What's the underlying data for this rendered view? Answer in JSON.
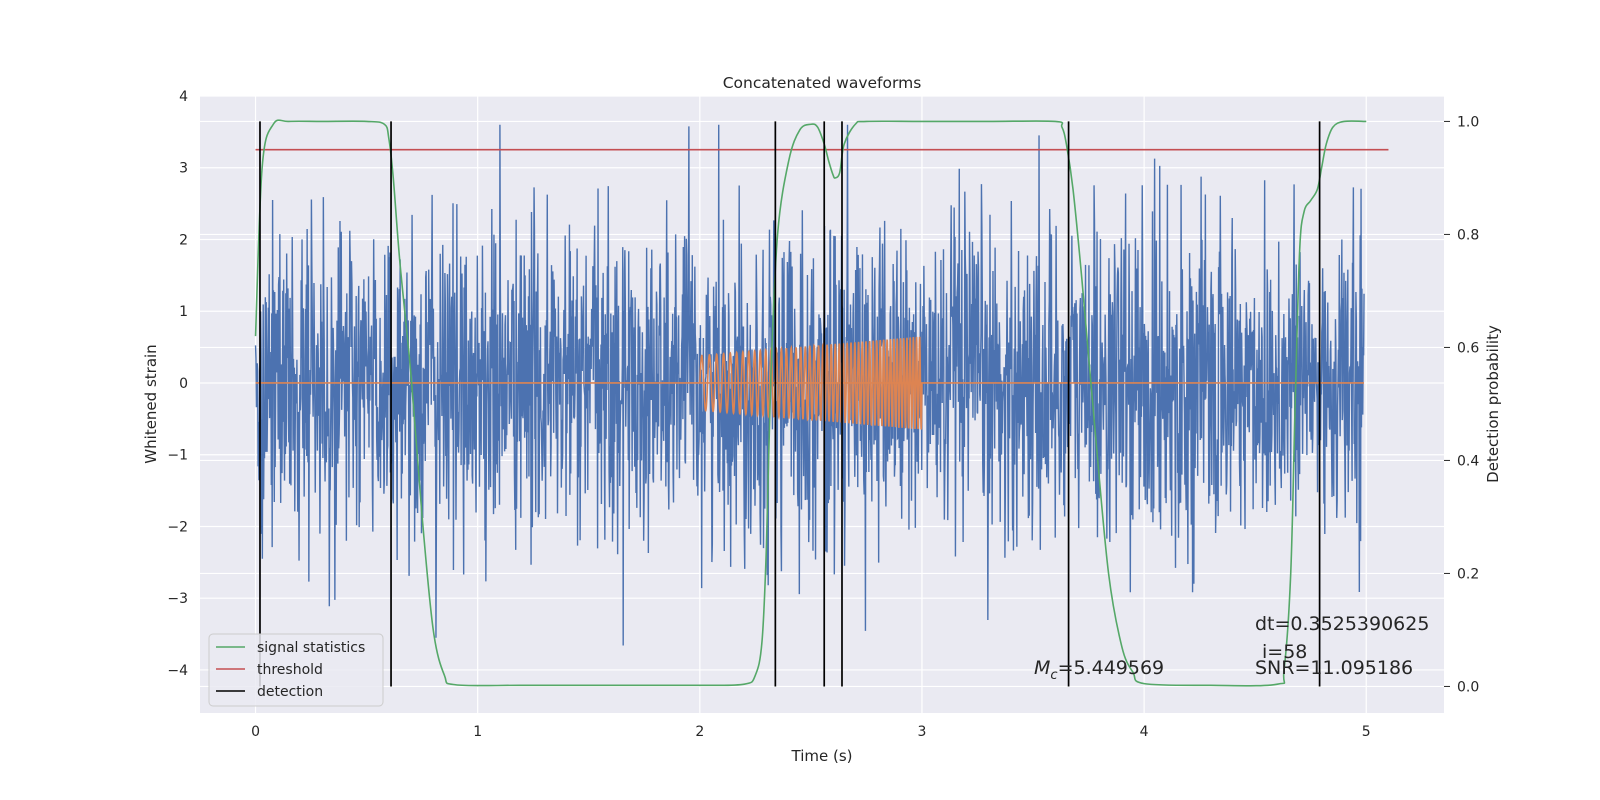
{
  "chart_data": {
    "type": "line",
    "title": "Concatenated waveforms",
    "xlabel": "Time (s)",
    "ylabel_left": "Whitened strain",
    "ylabel_right": "Detection probability",
    "xlim": [
      -0.25,
      5.35
    ],
    "ylim_left": [
      -4.6,
      4.0
    ],
    "ylim_right": [
      -0.047,
      1.045
    ],
    "x_ticks": [
      "0",
      "1",
      "2",
      "3",
      "4",
      "5"
    ],
    "y_ticks_left": [
      "4",
      "3",
      "2",
      "1",
      "0",
      "−1",
      "−2",
      "−3",
      "−4"
    ],
    "y_ticks_right": [
      "1.0",
      "0.8",
      "0.6",
      "0.4",
      "0.2",
      "0.0"
    ],
    "grid": true,
    "colors": {
      "background": "#eaeaf2",
      "grid": "#ffffff",
      "strain": "#4c72b0",
      "template": "#dd8452",
      "signal_statistics": "#55a868",
      "threshold": "#c44e52",
      "detection": "#000000"
    },
    "series": [
      {
        "name": "signal statistics",
        "axis": "right",
        "x": [
          0.0,
          0.03,
          0.08,
          0.15,
          0.3,
          0.5,
          0.58,
          0.6,
          0.62,
          0.65,
          0.7,
          0.75,
          0.8,
          0.85,
          0.9,
          1.2,
          1.6,
          2.0,
          2.2,
          2.25,
          2.28,
          2.3,
          2.32,
          2.35,
          2.4,
          2.45,
          2.5,
          2.53,
          2.56,
          2.58,
          2.6,
          2.61,
          2.63,
          2.65,
          2.7,
          2.75,
          3.0,
          3.3,
          3.6,
          3.63,
          3.65,
          3.68,
          3.72,
          3.78,
          3.84,
          3.9,
          3.95,
          4.0,
          4.3,
          4.6,
          4.63,
          4.66,
          4.68,
          4.7,
          4.72,
          4.75,
          4.78,
          4.8,
          4.82,
          4.85,
          4.9,
          5.0
        ],
        "values": [
          0.62,
          0.92,
          0.995,
          1.0,
          1.0,
          1.0,
          0.995,
          0.97,
          0.9,
          0.75,
          0.55,
          0.3,
          0.1,
          0.02,
          0.003,
          0.002,
          0.002,
          0.002,
          0.004,
          0.02,
          0.08,
          0.25,
          0.55,
          0.8,
          0.93,
          0.985,
          0.995,
          0.99,
          0.96,
          0.93,
          0.905,
          0.9,
          0.91,
          0.96,
          0.995,
          1.0,
          1.0,
          1.0,
          1.0,
          0.99,
          0.96,
          0.88,
          0.72,
          0.45,
          0.2,
          0.07,
          0.025,
          0.005,
          0.002,
          0.004,
          0.03,
          0.2,
          0.5,
          0.77,
          0.84,
          0.86,
          0.88,
          0.92,
          0.96,
          0.99,
          1.0,
          1.0
        ]
      },
      {
        "name": "threshold",
        "axis": "right",
        "x": [
          0.0,
          5.1
        ],
        "values": [
          0.95,
          0.95
        ]
      },
      {
        "name": "detection",
        "axis": "right",
        "type": "vlines",
        "x": [
          0.02,
          0.61,
          2.34,
          2.56,
          2.64,
          3.66,
          4.79
        ],
        "y_range": [
          0.0,
          1.0
        ]
      },
      {
        "axis": "left",
        "type": "noise",
        "x_range": [
          0.0,
          4.99
        ],
        "amplitude_sd": 1.1
      },
      {
        "axis": "left",
        "type": "chirp",
        "x_range": [
          2.0,
          3.0
        ],
        "amplitude_start": 0.38,
        "amplitude_end": 0.65,
        "baseline_x_range": [
          0.0,
          4.99
        ]
      }
    ],
    "legend": {
      "placement": "lower-left",
      "entries": [
        "signal statistics",
        "threshold",
        "detection"
      ]
    },
    "annotations": {
      "mc_symbol": "M",
      "mc_subscript": "c",
      "mc_value": "=5.449569",
      "dt": "dt=0.3525390625",
      "i": "i=58",
      "snr": "SNR=11.095186"
    }
  }
}
